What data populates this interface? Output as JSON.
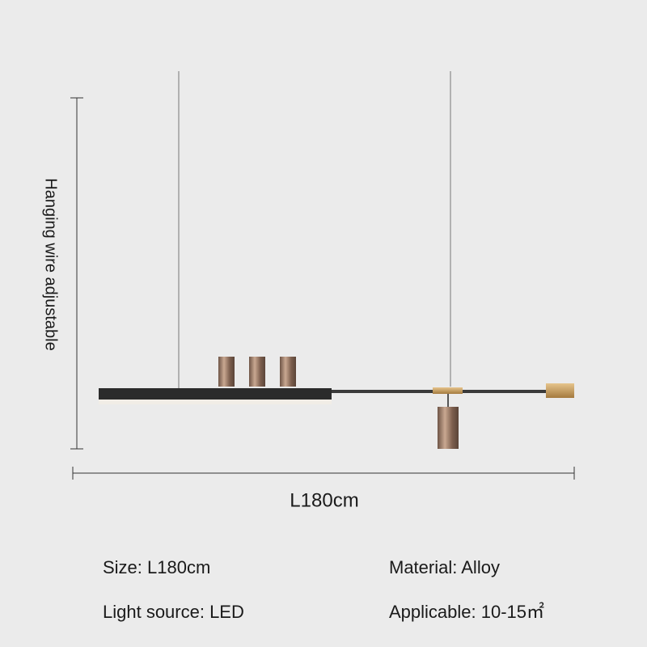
{
  "dimensions": {
    "height_label": "Hanging wire adjustable",
    "length_label": "L180cm"
  },
  "specs": {
    "size": "Size: L180cm",
    "material": "Material: Alloy",
    "light_source": "Light source: LED",
    "applicable": "Applicable: 10-15㎡"
  }
}
